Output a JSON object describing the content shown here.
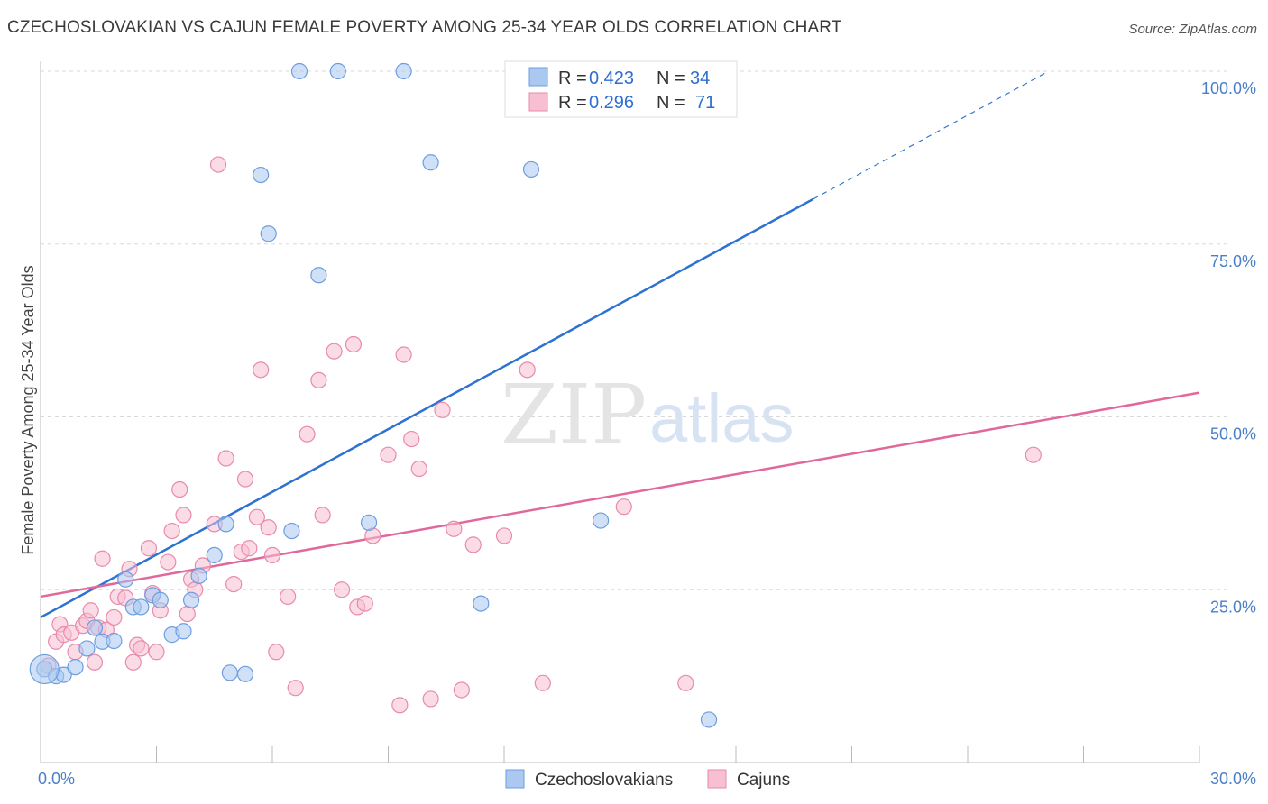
{
  "title": "CZECHOSLOVAKIAN VS CAJUN FEMALE POVERTY AMONG 25-34 YEAR OLDS CORRELATION CHART",
  "source": "Source: ZipAtlas.com",
  "watermark": {
    "zip": "ZIP",
    "atlas": "atlas"
  },
  "colors": {
    "czech_fill": "#aac8f0",
    "czech_stroke": "#6d9de0",
    "czech_line": "#2d72d2",
    "cajun_fill": "#f7bfd2",
    "cajun_stroke": "#e88aab",
    "cajun_line": "#e0689a",
    "grid": "#d8d8d8",
    "tick_text": "#4a7fc7"
  },
  "legend": {
    "rows": [
      {
        "r_label": "R = ",
        "r_value": "0.423",
        "n_label": "N = ",
        "n_value": "34"
      },
      {
        "r_label": "R = ",
        "r_value": "0.296",
        "n_label": "N = ",
        "n_value": "71"
      }
    ]
  },
  "bottom_legend": [
    "Czechoslovakians",
    "Cajuns"
  ],
  "chart_data": {
    "type": "scatter",
    "xlabel": "",
    "ylabel": "Female Poverty Among 25-34 Year Olds",
    "xlim": [
      0,
      30
    ],
    "ylim": [
      0,
      100
    ],
    "x_tick_labels": [
      "0.0%",
      "30.0%"
    ],
    "y_tick_labels": [
      "100.0%",
      "75.0%",
      "50.0%",
      "25.0%"
    ],
    "y_ticks": [
      100,
      75,
      50,
      25
    ],
    "grid": true,
    "legend_placement": "top-center",
    "series": [
      {
        "name": "Czechoslovakians",
        "r": 0.423,
        "n": 34,
        "trend": {
          "x0": 0,
          "y0": 21,
          "x1": 20,
          "y1": 81.5,
          "dash_to_x": 26,
          "dash_to_y": 99.7
        },
        "points": [
          [
            0.1,
            13.5
          ],
          [
            0.4,
            12.5
          ],
          [
            0.6,
            12.7
          ],
          [
            0.9,
            13.8
          ],
          [
            1.2,
            16.5
          ],
          [
            1.4,
            19.5
          ],
          [
            1.6,
            17.5
          ],
          [
            1.9,
            17.6
          ],
          [
            2.2,
            26.5
          ],
          [
            2.4,
            22.5
          ],
          [
            2.6,
            22.5
          ],
          [
            2.9,
            24.2
          ],
          [
            3.1,
            23.5
          ],
          [
            3.4,
            18.5
          ],
          [
            3.7,
            19.0
          ],
          [
            3.9,
            23.5
          ],
          [
            4.1,
            27.0
          ],
          [
            4.5,
            30.0
          ],
          [
            4.8,
            34.5
          ],
          [
            4.9,
            13.0
          ],
          [
            5.3,
            12.8
          ],
          [
            5.7,
            85.0
          ],
          [
            5.9,
            76.5
          ],
          [
            6.5,
            33.5
          ],
          [
            6.7,
            100.0
          ],
          [
            7.2,
            70.5
          ],
          [
            7.7,
            100.0
          ],
          [
            8.5,
            34.7
          ],
          [
            9.4,
            100.0
          ],
          [
            10.1,
            86.8
          ],
          [
            11.4,
            23.0
          ],
          [
            12.7,
            85.8
          ],
          [
            14.5,
            35.0
          ],
          [
            17.3,
            6.2
          ]
        ]
      },
      {
        "name": "Cajuns",
        "r": 0.296,
        "n": 71,
        "trend": {
          "x0": 0,
          "y0": 24,
          "x1": 30,
          "y1": 53.5
        },
        "points": [
          [
            0.2,
            14.0
          ],
          [
            0.4,
            17.5
          ],
          [
            0.5,
            20.0
          ],
          [
            0.6,
            18.5
          ],
          [
            0.8,
            18.8
          ],
          [
            0.9,
            16.0
          ],
          [
            1.1,
            19.8
          ],
          [
            1.2,
            20.5
          ],
          [
            1.3,
            22.0
          ],
          [
            1.4,
            14.5
          ],
          [
            1.5,
            19.5
          ],
          [
            1.6,
            29.5
          ],
          [
            1.7,
            19.2
          ],
          [
            1.9,
            21.0
          ],
          [
            2.0,
            24.0
          ],
          [
            2.2,
            23.8
          ],
          [
            2.3,
            28.0
          ],
          [
            2.4,
            14.5
          ],
          [
            2.5,
            17.0
          ],
          [
            2.6,
            16.5
          ],
          [
            2.8,
            31.0
          ],
          [
            2.9,
            24.5
          ],
          [
            3.0,
            16.0
          ],
          [
            3.1,
            22.0
          ],
          [
            3.3,
            29.0
          ],
          [
            3.4,
            33.5
          ],
          [
            3.6,
            39.5
          ],
          [
            3.7,
            35.8
          ],
          [
            3.8,
            21.5
          ],
          [
            3.9,
            26.5
          ],
          [
            4.0,
            25.0
          ],
          [
            4.2,
            28.5
          ],
          [
            4.5,
            34.5
          ],
          [
            4.6,
            86.5
          ],
          [
            4.8,
            44.0
          ],
          [
            5.0,
            25.8
          ],
          [
            5.2,
            30.5
          ],
          [
            5.3,
            41.0
          ],
          [
            5.4,
            31.0
          ],
          [
            5.6,
            35.5
          ],
          [
            5.7,
            56.8
          ],
          [
            5.9,
            34.0
          ],
          [
            6.1,
            16.0
          ],
          [
            6.4,
            24.0
          ],
          [
            6.6,
            10.8
          ],
          [
            6.9,
            47.5
          ],
          [
            7.2,
            55.3
          ],
          [
            7.3,
            35.8
          ],
          [
            7.6,
            59.5
          ],
          [
            7.8,
            25.0
          ],
          [
            8.1,
            60.5
          ],
          [
            8.2,
            22.5
          ],
          [
            8.4,
            23.0
          ],
          [
            8.6,
            32.8
          ],
          [
            9.0,
            44.5
          ],
          [
            9.3,
            8.3
          ],
          [
            9.4,
            59.0
          ],
          [
            9.6,
            46.8
          ],
          [
            9.8,
            42.5
          ],
          [
            10.1,
            9.2
          ],
          [
            10.4,
            51.0
          ],
          [
            10.7,
            33.8
          ],
          [
            10.9,
            10.5
          ],
          [
            11.2,
            31.5
          ],
          [
            12.0,
            32.8
          ],
          [
            12.6,
            56.8
          ],
          [
            13.0,
            11.5
          ],
          [
            15.1,
            37.0
          ],
          [
            16.7,
            11.5
          ],
          [
            25.7,
            44.5
          ],
          [
            6.0,
            30.0
          ]
        ]
      }
    ]
  }
}
